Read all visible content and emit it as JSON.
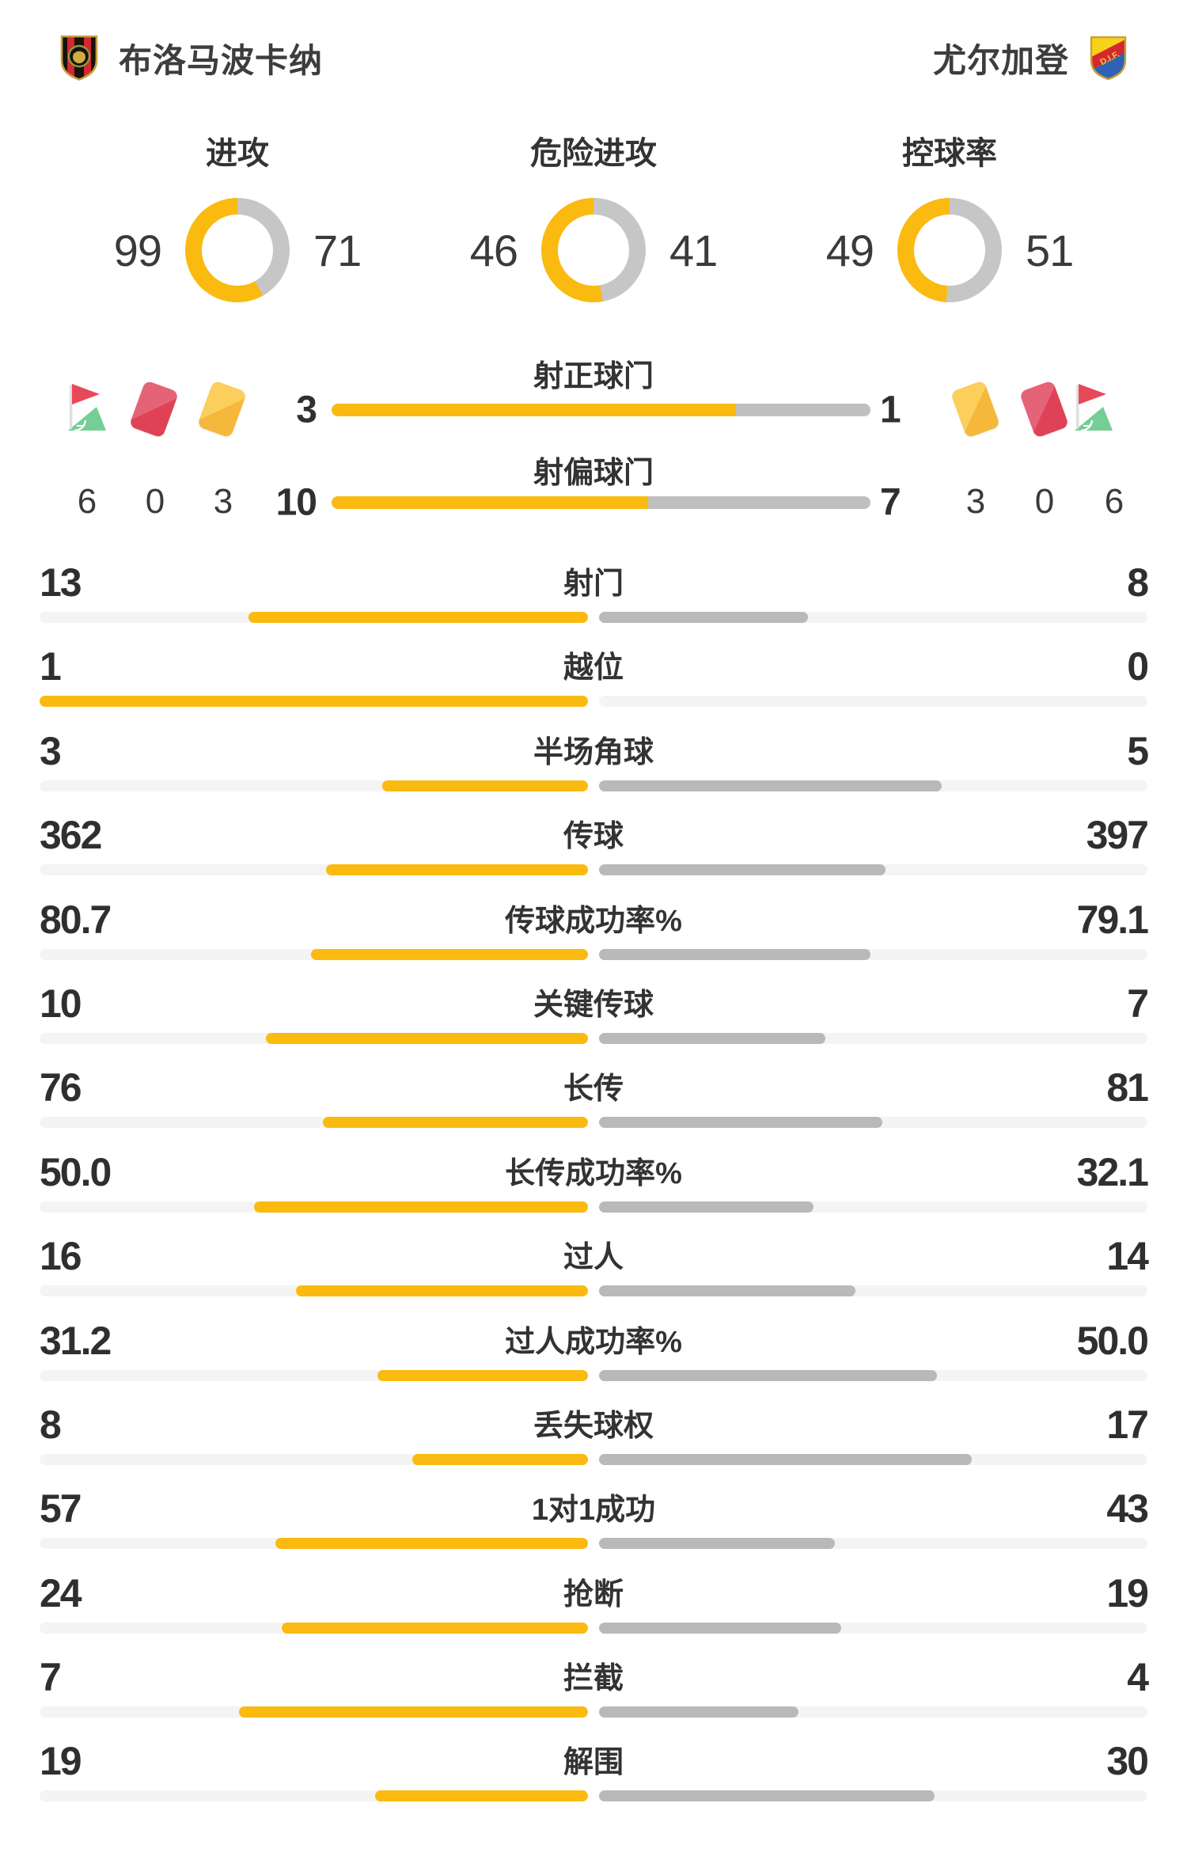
{
  "header": {
    "home_team": {
      "name": "布洛马波卡纳"
    },
    "away_team": {
      "name": "尤尔加登",
      "logo_text": "D.I.F."
    }
  },
  "summary_donuts": [
    {
      "label": "进攻",
      "home": "99",
      "away": "71"
    },
    {
      "label": "危险进攻",
      "home": "46",
      "away": "41"
    },
    {
      "label": "控球率",
      "home": "49",
      "away": "51"
    }
  ],
  "shot_rows": [
    {
      "label": "射正球门",
      "home": "3",
      "away": "1"
    },
    {
      "label": "射偏球门",
      "home": "10",
      "away": "7"
    }
  ],
  "discipline": {
    "home": {
      "corner_kicks": "6",
      "red_cards": "0",
      "yellow_cards": "3"
    },
    "away": {
      "yellow_cards": "3",
      "red_cards": "0",
      "corner_kicks": "6"
    }
  },
  "stats": [
    {
      "label": "射门",
      "home": "13",
      "away": "8"
    },
    {
      "label": "越位",
      "home": "1",
      "away": "0"
    },
    {
      "label": "半场角球",
      "home": "3",
      "away": "5"
    },
    {
      "label": "传球",
      "home": "362",
      "away": "397"
    },
    {
      "label": "传球成功率%",
      "home": "80.7",
      "away": "79.1"
    },
    {
      "label": "关键传球",
      "home": "10",
      "away": "7"
    },
    {
      "label": "长传",
      "home": "76",
      "away": "81"
    },
    {
      "label": "长传成功率%",
      "home": "50.0",
      "away": "32.1"
    },
    {
      "label": "过人",
      "home": "16",
      "away": "14"
    },
    {
      "label": "过人成功率%",
      "home": "31.2",
      "away": "50.0"
    },
    {
      "label": "丢失球权",
      "home": "8",
      "away": "17"
    },
    {
      "label": "1对1成功",
      "home": "57",
      "away": "43"
    },
    {
      "label": "抢断",
      "home": "24",
      "away": "19"
    },
    {
      "label": "拦截",
      "home": "7",
      "away": "4"
    },
    {
      "label": "解围",
      "home": "19",
      "away": "30"
    }
  ],
  "colors": {
    "accent_yellow": "#FBBA10",
    "donut_gray": "#C6C6C6",
    "bar_gray": "#B9B9B9",
    "track_gray": "#F4F4F4",
    "text_dark": "#333333",
    "card_red": "#DF4257",
    "card_yellow": "#F6B83B",
    "flag_red": "#E8495A",
    "flag_green": "#74CE95"
  }
}
